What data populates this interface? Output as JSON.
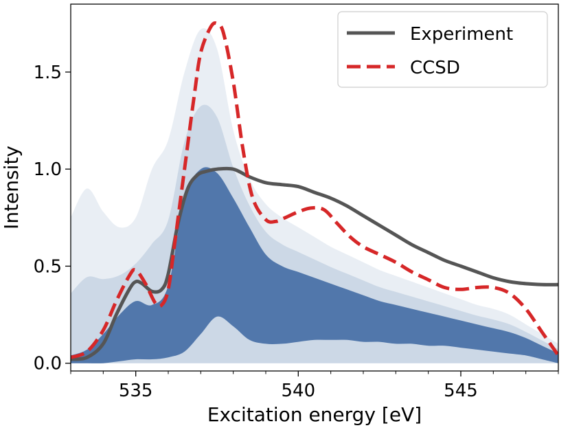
{
  "chart_data": {
    "type": "line",
    "title": "",
    "xlabel": "Excitation energy [eV]",
    "ylabel": "Intensity",
    "xlim": [
      533,
      548
    ],
    "ylim": [
      -0.04,
      1.85
    ],
    "xticks": [
      535,
      540,
      545
    ],
    "xtick_labels": [
      "535",
      "540",
      "545"
    ],
    "yticks": [
      0.0,
      0.5,
      1.0,
      1.5
    ],
    "ytick_labels": [
      "0.0",
      "0.5",
      "1.0",
      "1.5"
    ],
    "grid": false,
    "legend_position": "top-right",
    "colors": {
      "experiment": "#555555",
      "ccsd": "#d62728",
      "ensemble": "#4a72a8"
    },
    "series": [
      {
        "name": "Experiment",
        "style": "solid",
        "x": [
          533.0,
          533.5,
          534.0,
          534.4,
          534.8,
          535.0,
          535.2,
          535.5,
          535.8,
          536.0,
          536.3,
          536.6,
          536.9,
          537.2,
          537.5,
          538.0,
          538.5,
          539.0,
          539.5,
          540.0,
          540.5,
          541.0,
          541.5,
          542.0,
          542.5,
          543.0,
          543.5,
          544.0,
          544.5,
          545.0,
          545.5,
          546.0,
          546.5,
          547.0,
          547.5,
          548.0
        ],
        "y": [
          0.02,
          0.03,
          0.1,
          0.25,
          0.38,
          0.42,
          0.41,
          0.37,
          0.38,
          0.46,
          0.72,
          0.9,
          0.97,
          0.99,
          1.0,
          1.0,
          0.96,
          0.93,
          0.92,
          0.91,
          0.88,
          0.85,
          0.81,
          0.76,
          0.71,
          0.66,
          0.61,
          0.57,
          0.53,
          0.5,
          0.47,
          0.44,
          0.42,
          0.41,
          0.405,
          0.405
        ]
      },
      {
        "name": "CCSD",
        "style": "dashed",
        "x": [
          533.0,
          533.5,
          534.0,
          534.4,
          534.8,
          535.0,
          535.3,
          535.6,
          535.8,
          536.0,
          536.2,
          536.5,
          536.8,
          537.0,
          537.3,
          537.5,
          537.7,
          538.0,
          538.3,
          538.6,
          539.0,
          539.3,
          539.6,
          540.0,
          540.4,
          540.8,
          541.2,
          541.6,
          542.0,
          542.5,
          543.0,
          543.5,
          544.0,
          544.5,
          545.0,
          545.5,
          546.0,
          546.5,
          547.0,
          547.5,
          548.0
        ],
        "y": [
          0.03,
          0.06,
          0.17,
          0.32,
          0.45,
          0.48,
          0.41,
          0.31,
          0.3,
          0.38,
          0.62,
          1.0,
          1.38,
          1.6,
          1.73,
          1.75,
          1.7,
          1.45,
          1.1,
          0.85,
          0.74,
          0.73,
          0.75,
          0.78,
          0.8,
          0.79,
          0.72,
          0.65,
          0.6,
          0.56,
          0.52,
          0.47,
          0.43,
          0.39,
          0.38,
          0.39,
          0.39,
          0.36,
          0.28,
          0.16,
          0.04
        ]
      }
    ],
    "ensemble": {
      "name": "sampled spectra (unlabeled)",
      "x": [
        533.0,
        533.5,
        534.0,
        534.5,
        535.0,
        535.5,
        536.0,
        536.5,
        537.0,
        537.5,
        538.0,
        538.5,
        539.0,
        539.5,
        540.0,
        540.5,
        541.0,
        541.5,
        542.0,
        542.5,
        543.0,
        543.5,
        544.0,
        544.5,
        545.0,
        545.5,
        546.0,
        546.5,
        547.0,
        547.5,
        548.0
      ],
      "core_upper": [
        0.04,
        0.07,
        0.15,
        0.25,
        0.32,
        0.3,
        0.4,
        0.85,
        1.0,
        0.98,
        0.85,
        0.7,
        0.56,
        0.5,
        0.47,
        0.44,
        0.41,
        0.38,
        0.35,
        0.32,
        0.3,
        0.28,
        0.26,
        0.24,
        0.22,
        0.2,
        0.18,
        0.16,
        0.13,
        0.09,
        0.05
      ],
      "core_lower": [
        0.0,
        0.0,
        0.0,
        0.01,
        0.02,
        0.02,
        0.03,
        0.06,
        0.15,
        0.24,
        0.19,
        0.12,
        0.1,
        0.1,
        0.11,
        0.12,
        0.12,
        0.12,
        0.11,
        0.11,
        0.1,
        0.1,
        0.09,
        0.09,
        0.08,
        0.07,
        0.06,
        0.05,
        0.04,
        0.02,
        0.0
      ],
      "halo_upper": [
        0.75,
        0.9,
        0.78,
        0.7,
        0.75,
        1.0,
        1.15,
        1.5,
        1.72,
        1.62,
        1.2,
        0.95,
        0.82,
        0.75,
        0.7,
        0.65,
        0.6,
        0.56,
        0.52,
        0.48,
        0.45,
        0.42,
        0.39,
        0.36,
        0.33,
        0.3,
        0.28,
        0.25,
        0.2,
        0.15,
        0.1
      ]
    }
  }
}
